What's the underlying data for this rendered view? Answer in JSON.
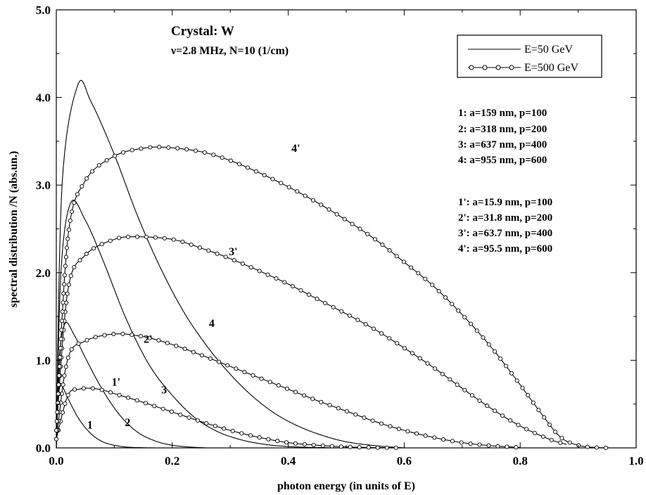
{
  "chart_data": {
    "type": "line",
    "xlabel": "photon energy (in units of E)",
    "ylabel": "spectral distribution /N (abs.un.)",
    "xlim": [
      0.0,
      1.0
    ],
    "ylim": [
      0.0,
      5.0
    ],
    "x_ticks": [
      0.0,
      0.2,
      0.4,
      0.6,
      0.8,
      1.0
    ],
    "x_tick_labels": [
      "0.0",
      "0.2",
      "0.4",
      "0.6",
      "0.8",
      "1.0"
    ],
    "y_ticks": [
      0.0,
      1.0,
      2.0,
      3.0,
      4.0,
      5.0
    ],
    "y_tick_labels": [
      "0.0",
      "1.0",
      "2.0",
      "3.0",
      "4.0",
      "5.0"
    ],
    "grid": false,
    "annotations": {
      "crystal": "Crystal: W",
      "params": "ν=2.8 MHz,  N=10 (1/cm)",
      "group1": [
        "1: a=159 nm, p=100",
        "2: a=318 nm, p=200",
        "3: a=637 nm, p=400",
        "4: a=955 nm, p=600"
      ],
      "group2": [
        "1': a=15.9 nm, p=100",
        "2': a=31.8 nm, p=200",
        "3': a=63.7 nm, p=400",
        "4': a=95.5 nm, p=600"
      ]
    },
    "legend": {
      "position": "top-right",
      "entries": [
        {
          "label": "E=50 GeV",
          "marker": "none"
        },
        {
          "label": "E=500 GeV",
          "marker": "circle"
        }
      ]
    },
    "series": [
      {
        "name": "1",
        "group": "E=50 GeV",
        "marker": "none",
        "x": [
          0,
          0.003,
          0.008,
          0.015,
          0.025,
          0.04,
          0.06,
          0.08,
          0.1,
          0.12,
          0.15,
          0.18
        ],
        "y": [
          0,
          0.55,
          0.72,
          0.64,
          0.5,
          0.32,
          0.16,
          0.07,
          0.03,
          0.01,
          0.002,
          0
        ]
      },
      {
        "name": "2",
        "group": "E=50 GeV",
        "marker": "none",
        "x": [
          0,
          0.005,
          0.015,
          0.03,
          0.05,
          0.08,
          0.11,
          0.14,
          0.17,
          0.2,
          0.23,
          0.26
        ],
        "y": [
          0,
          1.0,
          1.42,
          1.3,
          1.03,
          0.66,
          0.37,
          0.18,
          0.08,
          0.03,
          0.01,
          0
        ]
      },
      {
        "name": "3",
        "group": "E=50 GeV",
        "marker": "none",
        "x": [
          0,
          0.008,
          0.025,
          0.05,
          0.08,
          0.12,
          0.16,
          0.2,
          0.24,
          0.28,
          0.32,
          0.36,
          0.4,
          0.45,
          0.5
        ],
        "y": [
          0,
          2.0,
          2.8,
          2.6,
          2.15,
          1.48,
          0.95,
          0.6,
          0.34,
          0.18,
          0.09,
          0.04,
          0.015,
          0.004,
          0
        ]
      },
      {
        "name": "4",
        "group": "E=50 GeV",
        "marker": "none",
        "x": [
          0,
          0.01,
          0.037,
          0.06,
          0.1,
          0.14,
          0.18,
          0.22,
          0.26,
          0.3,
          0.34,
          0.38,
          0.42,
          0.46,
          0.5,
          0.55,
          0.6
        ],
        "y": [
          0,
          3.0,
          4.14,
          3.95,
          3.35,
          2.65,
          2.05,
          1.55,
          1.16,
          0.84,
          0.58,
          0.38,
          0.24,
          0.14,
          0.07,
          0.025,
          0
        ]
      },
      {
        "name": "1'",
        "group": "E=500 GeV",
        "marker": "circle",
        "x": [
          0,
          0.02,
          0.04,
          0.06,
          0.08,
          0.1,
          0.15,
          0.2,
          0.25,
          0.3,
          0.35,
          0.4,
          0.45,
          0.5,
          0.55,
          0.6
        ],
        "y": [
          0.1,
          0.6,
          0.67,
          0.68,
          0.66,
          0.62,
          0.52,
          0.41,
          0.3,
          0.2,
          0.12,
          0.06,
          0.03,
          0.012,
          0.004,
          0.001
        ]
      },
      {
        "name": "2'",
        "group": "E=500 GeV",
        "marker": "circle",
        "x": [
          0,
          0.02,
          0.05,
          0.1,
          0.15,
          0.2,
          0.25,
          0.3,
          0.35,
          0.4,
          0.45,
          0.5,
          0.55,
          0.6,
          0.65,
          0.7,
          0.75,
          0.8
        ],
        "y": [
          0.1,
          1.02,
          1.22,
          1.3,
          1.27,
          1.18,
          1.06,
          0.93,
          0.8,
          0.67,
          0.54,
          0.42,
          0.3,
          0.2,
          0.12,
          0.06,
          0.025,
          0.005
        ]
      },
      {
        "name": "3'",
        "group": "E=500 GeV",
        "marker": "circle",
        "x": [
          0,
          0.02,
          0.05,
          0.1,
          0.14,
          0.2,
          0.25,
          0.3,
          0.35,
          0.4,
          0.45,
          0.5,
          0.55,
          0.6,
          0.65,
          0.7,
          0.75,
          0.8,
          0.85,
          0.88
        ],
        "y": [
          0.2,
          1.8,
          2.2,
          2.38,
          2.41,
          2.38,
          2.28,
          2.16,
          2.02,
          1.87,
          1.7,
          1.53,
          1.35,
          1.14,
          0.92,
          0.68,
          0.45,
          0.25,
          0.1,
          0.04
        ]
      },
      {
        "name": "4'",
        "group": "E=500 GeV",
        "marker": "circle",
        "x": [
          0,
          0.02,
          0.05,
          0.1,
          0.15,
          0.19,
          0.25,
          0.3,
          0.35,
          0.4,
          0.45,
          0.5,
          0.55,
          0.6,
          0.65,
          0.7,
          0.75,
          0.8,
          0.84,
          0.87,
          0.9,
          0.93,
          0.96
        ],
        "y": [
          0.2,
          2.4,
          3.05,
          3.33,
          3.42,
          3.43,
          3.38,
          3.28,
          3.14,
          2.98,
          2.8,
          2.6,
          2.38,
          2.12,
          1.85,
          1.52,
          1.15,
          0.72,
          0.36,
          0.12,
          0.03,
          0.005,
          0
        ]
      }
    ],
    "curve_labels": [
      {
        "text": "1",
        "x": 0.058,
        "y": 0.22
      },
      {
        "text": "2",
        "x": 0.123,
        "y": 0.25
      },
      {
        "text": "3",
        "x": 0.186,
        "y": 0.62
      },
      {
        "text": "4",
        "x": 0.268,
        "y": 1.38
      },
      {
        "text": "1'",
        "x": 0.103,
        "y": 0.71
      },
      {
        "text": "2'",
        "x": 0.158,
        "y": 1.2
      },
      {
        "text": "3'",
        "x": 0.305,
        "y": 2.2
      },
      {
        "text": "4'",
        "x": 0.413,
        "y": 3.38
      }
    ]
  }
}
